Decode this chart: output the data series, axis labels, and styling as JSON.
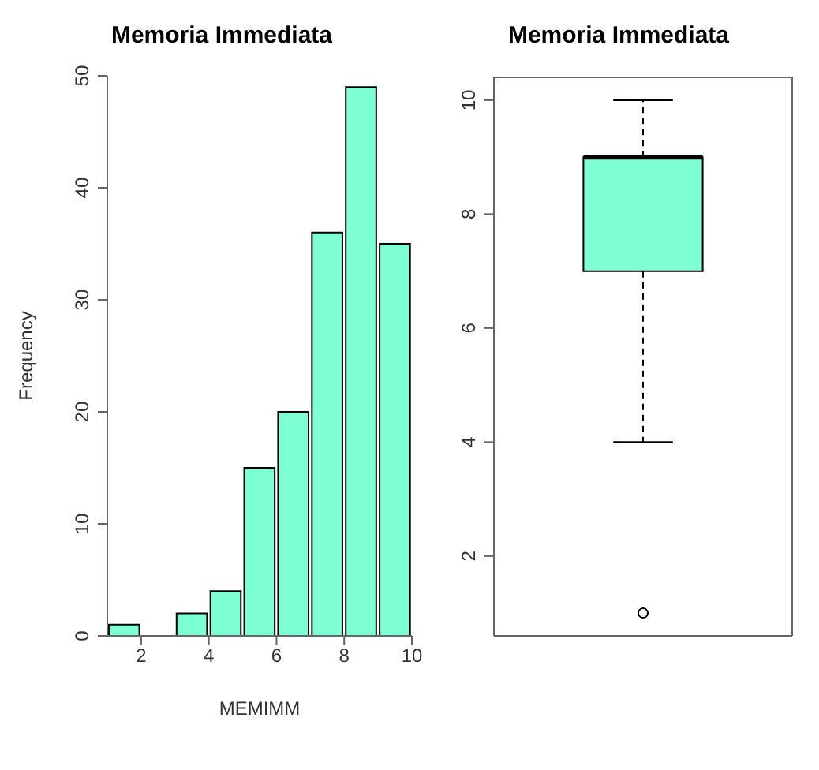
{
  "chart_data": [
    {
      "type": "histogram",
      "title": "Memoria Immediata",
      "xlabel": "MEMIMM",
      "ylabel": "Frequency",
      "bins": [
        1,
        2,
        3,
        4,
        5,
        6,
        7,
        8,
        9,
        10
      ],
      "values": [
        1,
        0,
        2,
        4,
        15,
        20,
        36,
        49,
        35
      ],
      "color": "#7fffd4",
      "xlim": [
        1,
        10
      ],
      "xticks": [
        2,
        4,
        6,
        8,
        10
      ],
      "ylim": [
        0,
        50
      ],
      "yticks": [
        0,
        10,
        20,
        30,
        40,
        50
      ]
    },
    {
      "type": "box",
      "title": "Memoria Immediata",
      "categories": [
        null
      ],
      "boxes": [
        {
          "low": 4,
          "q1": 7,
          "median": 9,
          "q3": 9,
          "high": 10,
          "outliers": [
            1
          ]
        }
      ],
      "color": "#7fffd4",
      "ylim": [
        0.6,
        10.4
      ],
      "yticks": [
        2,
        4,
        6,
        8,
        10
      ]
    }
  ]
}
